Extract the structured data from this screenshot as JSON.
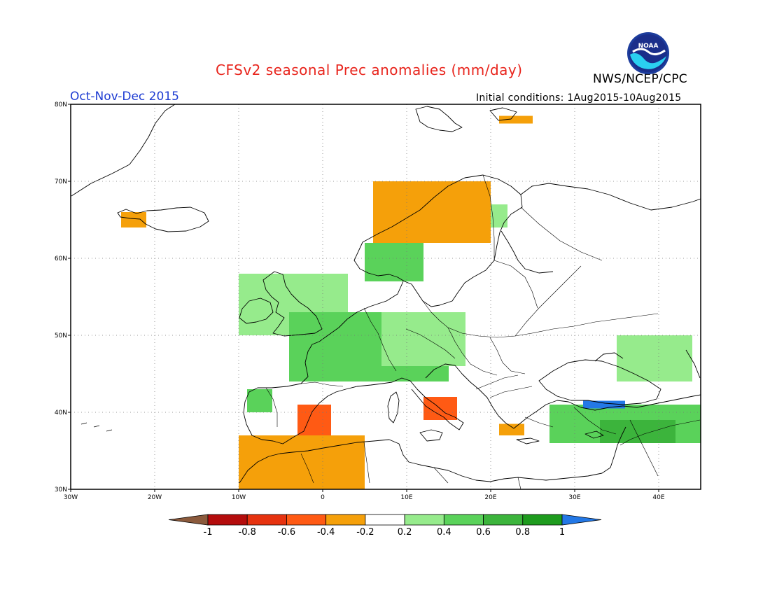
{
  "title": "CFSv2 seasonal Prec anomalies (mm/day)",
  "agency": "NWS/NCEP/CPC",
  "logo_text": "NOAA",
  "period": "Oct-Nov-Dec 2015",
  "initial_conditions": "Initial conditions: 1Aug2015-10Aug2015",
  "map": {
    "lon_range": [
      -30,
      45
    ],
    "lat_range": [
      30,
      80
    ],
    "lon_ticks": [
      {
        "value": -30,
        "label": "30W"
      },
      {
        "value": -20,
        "label": "20W"
      },
      {
        "value": -10,
        "label": "10W"
      },
      {
        "value": 0,
        "label": "0"
      },
      {
        "value": 10,
        "label": "10E"
      },
      {
        "value": 20,
        "label": "20E"
      },
      {
        "value": 30,
        "label": "30E"
      },
      {
        "value": 40,
        "label": "40E"
      }
    ],
    "lat_ticks": [
      {
        "value": 30,
        "label": "30N"
      },
      {
        "value": 40,
        "label": "40N"
      },
      {
        "value": 50,
        "label": "50N"
      },
      {
        "value": 60,
        "label": "60N"
      },
      {
        "value": 70,
        "label": "70N"
      },
      {
        "value": 80,
        "label": "80N"
      }
    ],
    "grid": "dotted"
  },
  "colorbar": {
    "bins": [
      {
        "color": "#8b5a3c"
      },
      {
        "color": "#b40c0c"
      },
      {
        "color": "#e6320f"
      },
      {
        "color": "#ff5a14"
      },
      {
        "color": "#f5a00a"
      },
      {
        "color": "#ffffff"
      },
      {
        "color": "#96eb8c"
      },
      {
        "color": "#5ad25a"
      },
      {
        "color": "#3cb43c"
      },
      {
        "color": "#1e9b1e"
      },
      {
        "color": "#2378e6"
      }
    ],
    "labels": [
      "-1",
      "-0.8",
      "-0.6",
      "-0.4",
      "-0.2",
      "0.2",
      "0.4",
      "0.6",
      "0.8",
      "1"
    ]
  },
  "anomalies": [
    {
      "class": "0.4",
      "color": "#96eb8c",
      "region": "UK and Ireland",
      "lon": [
        -10,
        3
      ],
      "lat": [
        50,
        58
      ]
    },
    {
      "class": "0.6",
      "color": "#5ad25a",
      "region": "France, Benelux and Germany",
      "lon": [
        -4,
        15
      ],
      "lat": [
        44,
        53
      ]
    },
    {
      "class": "0.4",
      "color": "#96eb8c",
      "region": "Central Europe",
      "lon": [
        7,
        17
      ],
      "lat": [
        46,
        53
      ]
    },
    {
      "class": "0.6",
      "color": "#5ad25a",
      "region": "South Norway",
      "lon": [
        5,
        12
      ],
      "lat": [
        57,
        62
      ]
    },
    {
      "class": "0.4",
      "color": "#96eb8c",
      "region": "Northern Sweden",
      "lon": [
        17,
        22
      ],
      "lat": [
        64,
        67
      ]
    },
    {
      "class": "0.6",
      "color": "#5ad25a",
      "region": "Turkey",
      "lon": [
        27,
        45
      ],
      "lat": [
        36,
        41
      ]
    },
    {
      "class": "0.8",
      "color": "#3cb43c",
      "region": "Eastern Turkey",
      "lon": [
        33,
        42
      ],
      "lat": [
        36,
        39
      ]
    },
    {
      "class": "1",
      "color": "#2378e6",
      "region": "Turkish Black Sea coast",
      "lon": [
        31,
        36
      ],
      "lat": [
        40.5,
        41.5
      ]
    },
    {
      "class": "0.4",
      "color": "#96eb8c",
      "region": "Western Russia",
      "lon": [
        35,
        44
      ],
      "lat": [
        44,
        50
      ]
    },
    {
      "class": "0.6",
      "color": "#5ad25a",
      "region": "North-west Iberia",
      "lon": [
        -9,
        -6
      ],
      "lat": [
        40,
        43
      ]
    },
    {
      "class": "-0.4",
      "color": "#f5a00a",
      "region": "Norwegian coast",
      "lon": [
        6,
        20
      ],
      "lat": [
        62,
        70
      ]
    },
    {
      "class": "-0.6",
      "color": "#ff5a14",
      "region": "Eastern Spain",
      "lon": [
        -3,
        1
      ],
      "lat": [
        37,
        41
      ]
    },
    {
      "class": "-0.6",
      "color": "#ff5a14",
      "region": "Italy",
      "lon": [
        12,
        16
      ],
      "lat": [
        39,
        42
      ]
    },
    {
      "class": "-0.4",
      "color": "#f5a00a",
      "region": "Morocco and Algeria",
      "lon": [
        -10,
        5
      ],
      "lat": [
        30,
        37
      ]
    },
    {
      "class": "-0.4",
      "color": "#f5a00a",
      "region": "Greece",
      "lon": [
        21,
        24
      ],
      "lat": [
        37,
        38.5
      ]
    },
    {
      "class": "-0.4",
      "color": "#f5a00a",
      "region": "Western Iceland",
      "lon": [
        -24,
        -21
      ],
      "lat": [
        64,
        66
      ]
    },
    {
      "class": "-0.4",
      "color": "#f5a00a",
      "region": "Svalbard",
      "lon": [
        21,
        25
      ],
      "lat": [
        77.5,
        78.5
      ]
    }
  ]
}
